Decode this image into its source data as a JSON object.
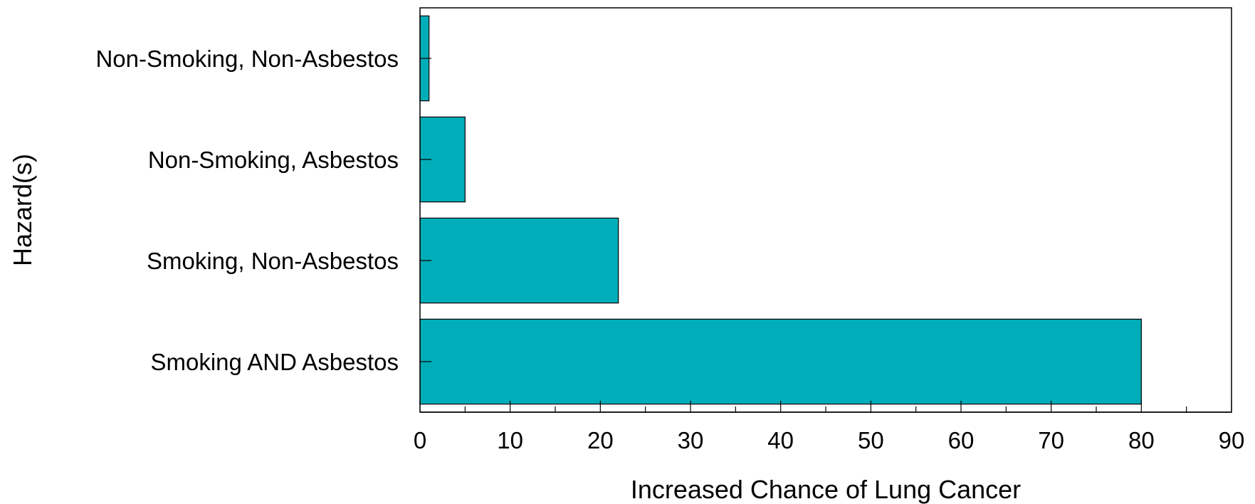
{
  "chart_data": {
    "type": "bar",
    "orientation": "horizontal",
    "categories": [
      "Non-Smoking, Non-Asbestos",
      "Non-Smoking, Asbestos",
      "Smoking, Non-Asbestos",
      "Smoking AND Asbestos"
    ],
    "values": [
      1,
      5,
      22,
      80
    ],
    "xlabel": "Increased Chance of Lung Cancer",
    "ylabel": "Hazard(s)",
    "xlim": [
      0,
      90
    ],
    "x_ticks": [
      0,
      10,
      20,
      30,
      40,
      50,
      60,
      70,
      80,
      90
    ],
    "grid": false,
    "bar_color": "#00adb9"
  }
}
